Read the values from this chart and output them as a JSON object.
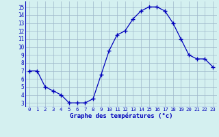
{
  "hours": [
    0,
    1,
    2,
    3,
    4,
    5,
    6,
    7,
    8,
    9,
    10,
    11,
    12,
    13,
    14,
    15,
    16,
    17,
    18,
    19,
    20,
    21,
    22,
    23
  ],
  "temps": [
    7,
    7,
    5,
    4.5,
    4,
    3,
    3,
    3,
    3.5,
    6.5,
    9.5,
    11.5,
    12,
    13.5,
    14.5,
    15,
    15,
    14.5,
    13,
    11,
    9,
    8.5,
    8.5,
    7.5
  ],
  "line_color": "#0000bb",
  "marker_color": "#0000bb",
  "bg_color": "#d4f0f0",
  "grid_color": "#a0b8cc",
  "xlabel": "Graphe des températures (°c)",
  "xlabel_color": "#0000bb",
  "tick_color": "#0000bb",
  "ylim": [
    2.5,
    15.7
  ],
  "xlim": [
    -0.5,
    23.5
  ],
  "yticks": [
    3,
    4,
    5,
    6,
    7,
    8,
    9,
    10,
    11,
    12,
    13,
    14,
    15
  ],
  "xticks": [
    0,
    1,
    2,
    3,
    4,
    5,
    6,
    7,
    8,
    9,
    10,
    11,
    12,
    13,
    14,
    15,
    16,
    17,
    18,
    19,
    20,
    21,
    22,
    23
  ]
}
